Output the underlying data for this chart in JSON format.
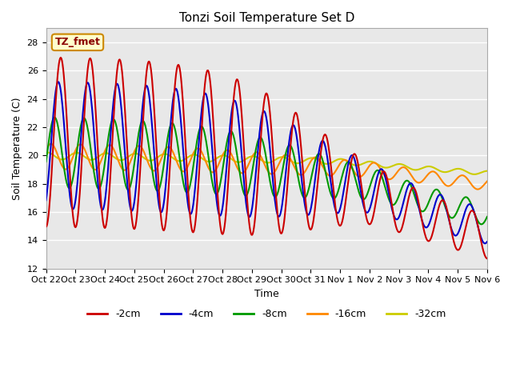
{
  "title": "Tonzi Soil Temperature Set D",
  "xlabel": "Time",
  "ylabel": "Soil Temperature (C)",
  "ylim": [
    12,
    29
  ],
  "yticks": [
    12,
    14,
    16,
    18,
    20,
    22,
    24,
    26,
    28
  ],
  "series_labels": [
    "-2cm",
    "-4cm",
    "-8cm",
    "-16cm",
    "-32cm"
  ],
  "series_colors": [
    "#cc0000",
    "#0000cc",
    "#009900",
    "#ff8800",
    "#cccc00"
  ],
  "xtick_labels": [
    "Oct 22",
    "Oct 23",
    "Oct 24",
    "Oct 25",
    "Oct 26",
    "Oct 27",
    "Oct 28",
    "Oct 29",
    "Oct 30",
    "Oct 31",
    "Nov 1",
    "Nov 2",
    "Nov 3",
    "Nov 4",
    "Nov 5",
    "Nov 6"
  ],
  "annotation_text": "TZ_fmet",
  "background_color": "#e8e8e8",
  "figure_background": "#ffffff",
  "line_width": 1.5
}
